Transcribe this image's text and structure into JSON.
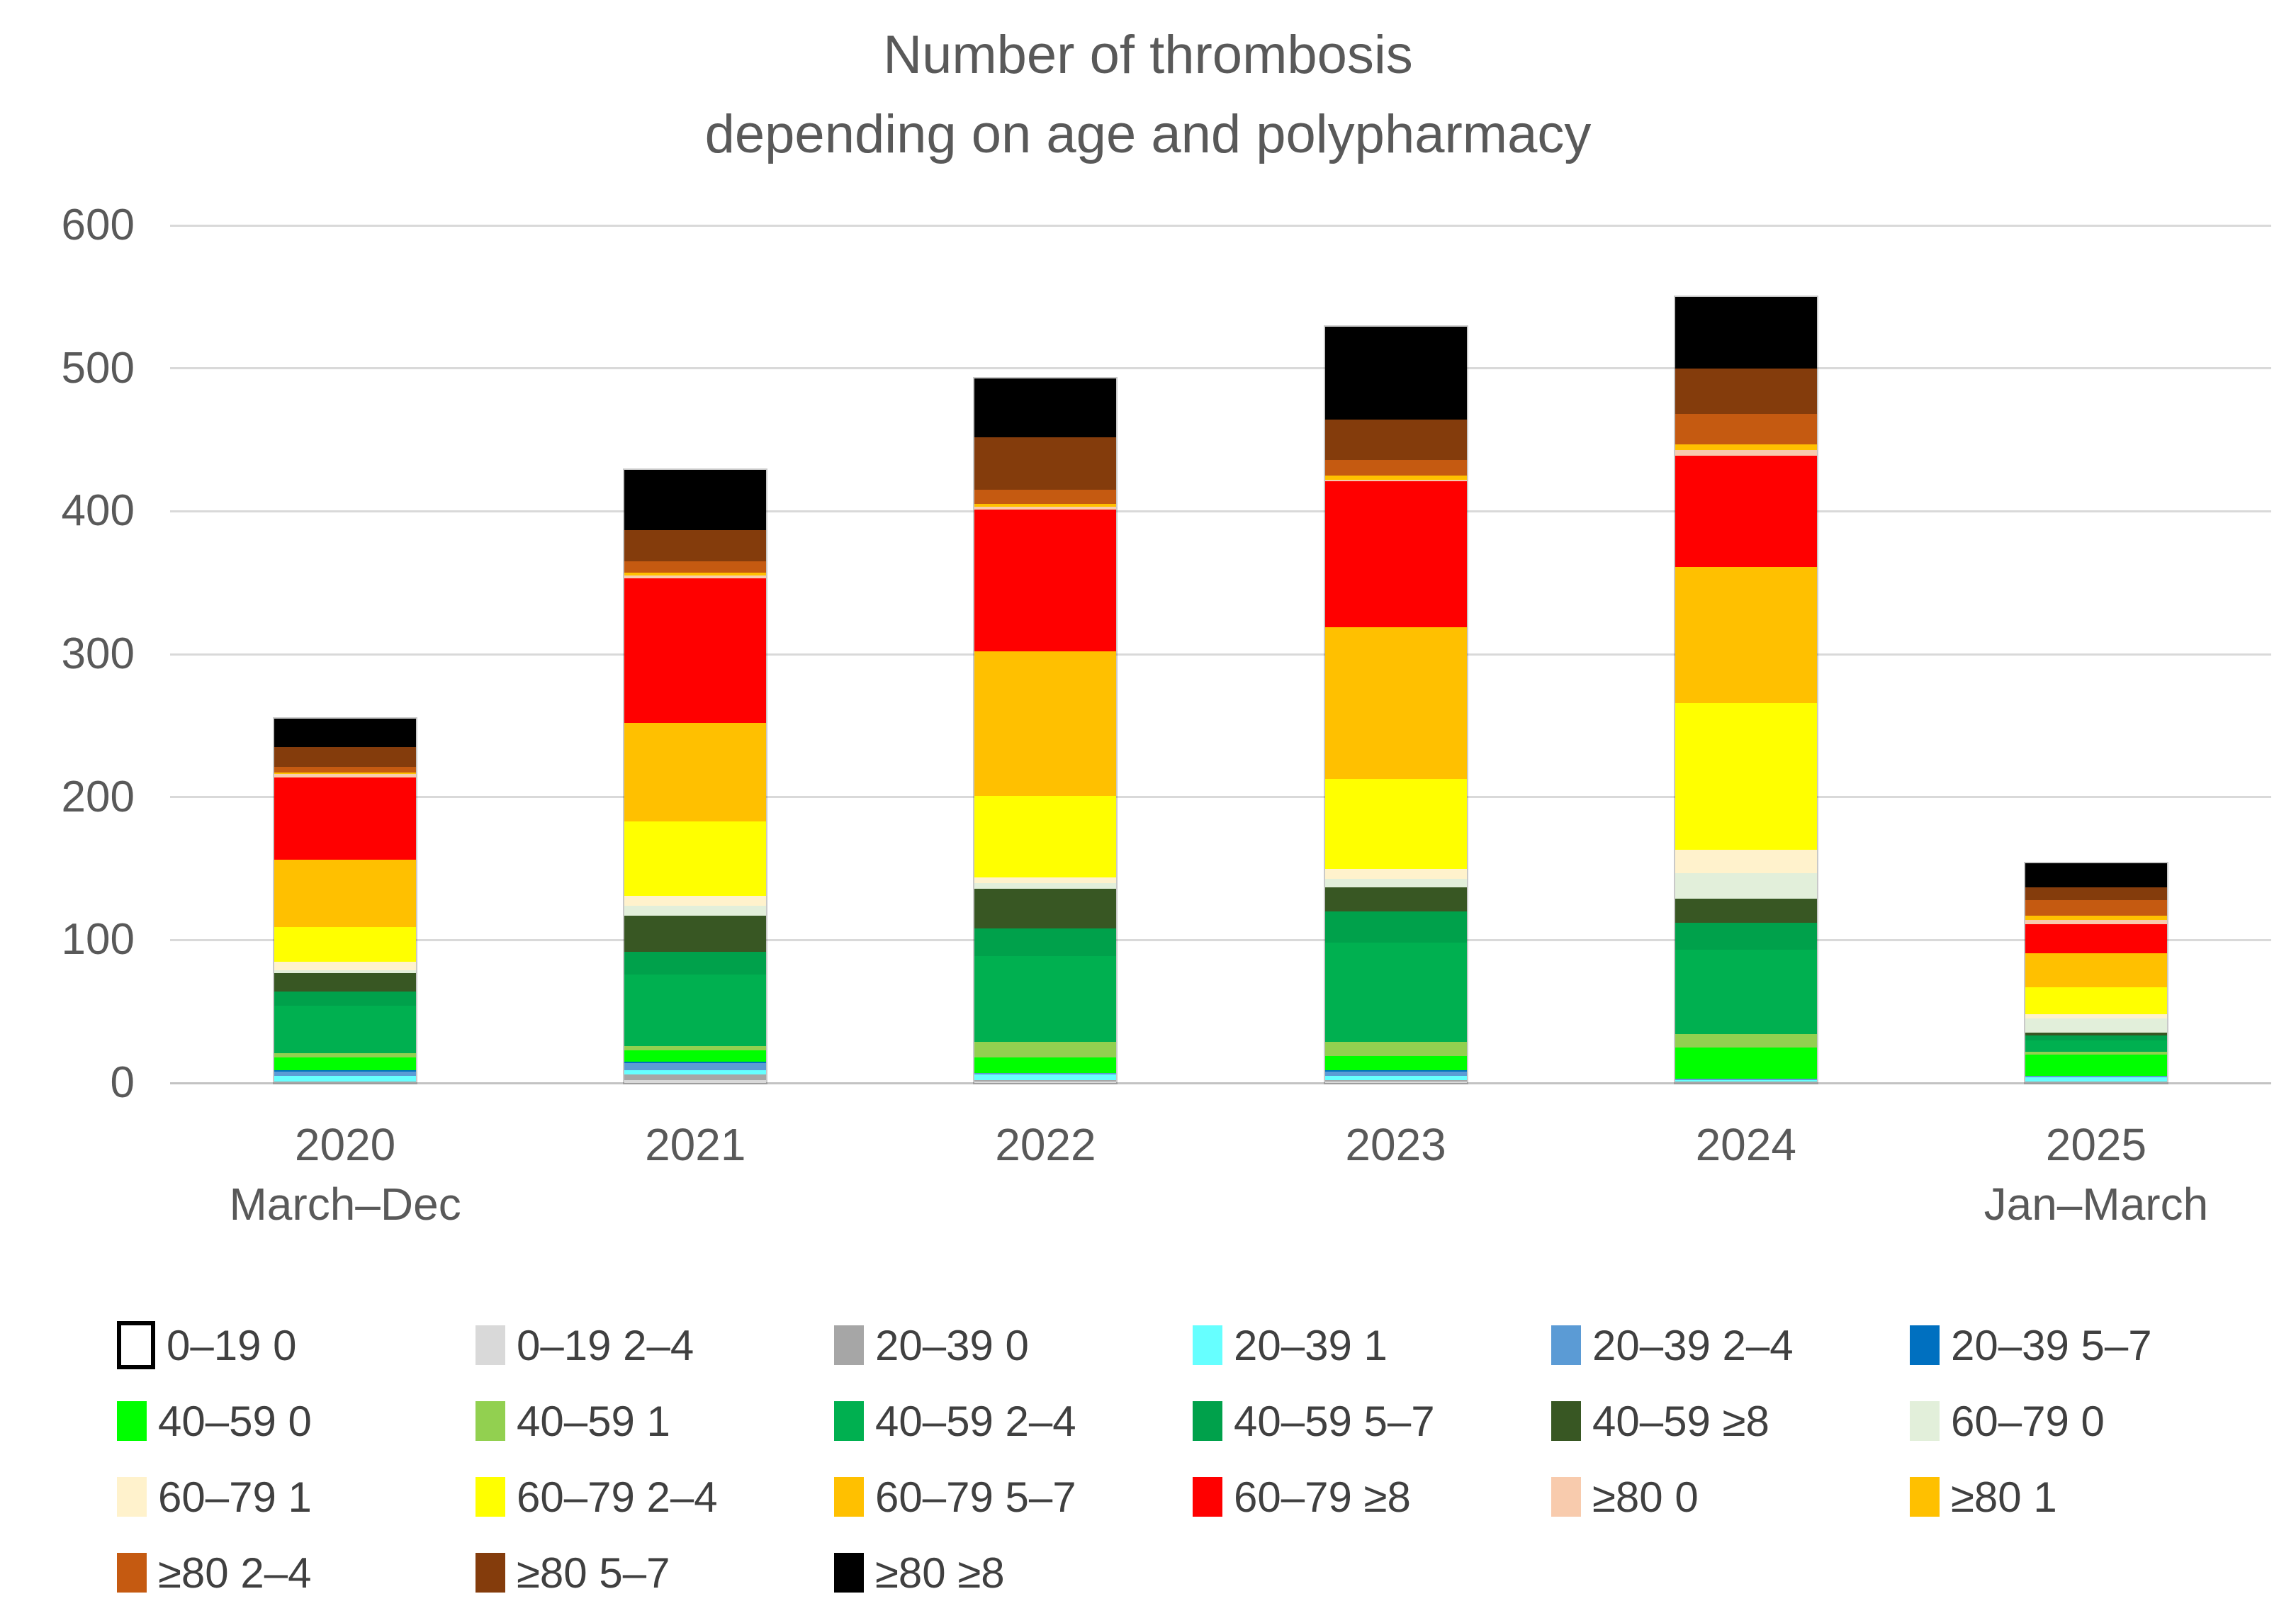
{
  "title": {
    "line1": "Number of thrombosis",
    "line2": "depending on age and polypharmacy"
  },
  "colors": {
    "background": "#FFFFFF",
    "title_text": "#595959",
    "axis_text": "#595959",
    "gridline": "#D9D9D9"
  },
  "chart_data": {
    "type": "bar",
    "stacked": true,
    "title": "Number of thrombosis depending on age and polypharmacy",
    "xlabel": "",
    "ylabel": "",
    "ylim": [
      0,
      600
    ],
    "ytick_interval": 100,
    "grid": true,
    "legend_position": "bottom",
    "legend_columns": 6,
    "categories": [
      "2020",
      "2021",
      "2022",
      "2023",
      "2024",
      "2025"
    ],
    "category_sublabels": [
      "March–Dec",
      "",
      "",
      "",
      "",
      "Jan–March"
    ],
    "totals": [
      255,
      429,
      493,
      529,
      550,
      154
    ],
    "series": [
      {
        "name": "0–19 0",
        "color": "#FFFFFF",
        "border": "#000000",
        "values": [
          0,
          0,
          0,
          0,
          0,
          0
        ]
      },
      {
        "name": "0–19 2–4",
        "color": "#D9D9D9",
        "values": [
          0,
          2,
          1,
          1,
          0,
          0
        ]
      },
      {
        "name": "20–39 0",
        "color": "#A6A6A6",
        "values": [
          1,
          4,
          1,
          1,
          1,
          1
        ]
      },
      {
        "name": "20–39 1",
        "color": "#66FFFF",
        "values": [
          4,
          3,
          4,
          3,
          1,
          3
        ]
      },
      {
        "name": "20–39 2–4",
        "color": "#5B9BD5",
        "values": [
          3,
          5,
          1,
          3,
          1,
          1
        ]
      },
      {
        "name": "20–39 5–7",
        "color": "#0070C0",
        "values": [
          1,
          1,
          0,
          1,
          0,
          0
        ]
      },
      {
        "name": "40–59 0",
        "color": "#00FF00",
        "values": [
          9,
          8,
          11,
          10,
          22,
          15
        ]
      },
      {
        "name": "40–59 1",
        "color": "#92D050",
        "values": [
          3,
          3,
          11,
          10,
          9,
          2
        ]
      },
      {
        "name": "40–59 2–4",
        "color": "#00B050",
        "values": [
          33,
          50,
          60,
          69,
          59,
          8
        ]
      },
      {
        "name": "40–59 5–7",
        "color": "#00A14B",
        "values": [
          10,
          16,
          19,
          22,
          19,
          3
        ]
      },
      {
        "name": "40–59 ≥8",
        "color": "#385723",
        "values": [
          13,
          25,
          28,
          17,
          17,
          2
        ]
      },
      {
        "name": "60–79 0",
        "color": "#E2EFDA",
        "values": [
          2,
          7,
          4,
          6,
          18,
          10
        ]
      },
      {
        "name": "60–79 1",
        "color": "#FFF2CC",
        "values": [
          6,
          7,
          4,
          7,
          16,
          3
        ]
      },
      {
        "name": "60–79 2–4",
        "color": "#FFFF00",
        "values": [
          24,
          52,
          57,
          63,
          103,
          19
        ]
      },
      {
        "name": "60–79 5–7",
        "color": "#FFC000",
        "values": [
          47,
          69,
          101,
          106,
          95,
          24
        ]
      },
      {
        "name": "60–79 ≥8",
        "color": "#FF0000",
        "values": [
          58,
          101,
          99,
          102,
          78,
          20
        ]
      },
      {
        "name": "≥80 0",
        "color": "#F8CBAD",
        "values": [
          2,
          2,
          2,
          1,
          4,
          3
        ]
      },
      {
        "name": "≥80 1",
        "color": "#FFC000",
        "values": [
          1,
          2,
          2,
          3,
          4,
          3
        ]
      },
      {
        "name": "≥80 2–4",
        "color": "#C55A11",
        "values": [
          4,
          8,
          10,
          11,
          21,
          11
        ]
      },
      {
        "name": "≥80 5–7",
        "color": "#843C0C",
        "values": [
          14,
          22,
          37,
          28,
          32,
          9
        ]
      },
      {
        "name": "≥80 ≥8",
        "color": "#000000",
        "values": [
          20,
          42,
          41,
          65,
          50,
          17
        ]
      }
    ]
  }
}
